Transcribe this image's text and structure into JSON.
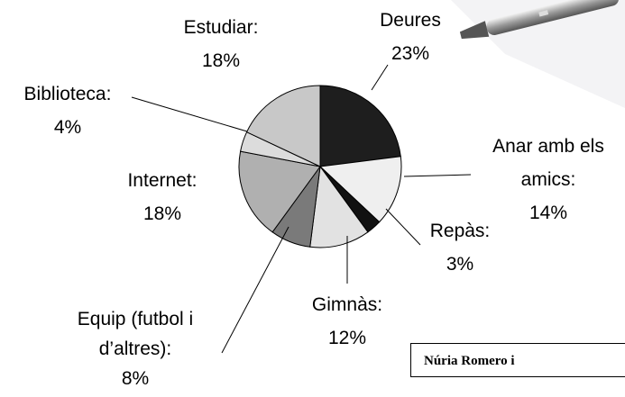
{
  "chart_data": {
    "type": "pie",
    "categories": [
      "Deures",
      "Anar amb els amics:",
      "Repàs:",
      "Gimnàs:",
      "Equip (futbol i d’altres):",
      "Internet:",
      "Biblioteca:",
      "Estudiar:"
    ],
    "values": [
      23,
      14,
      3,
      12,
      8,
      18,
      4,
      18
    ],
    "value_labels": [
      "23%",
      "14%",
      "3%",
      "12%",
      "8%",
      "18%",
      "4%",
      "18%"
    ],
    "colors": [
      "#1e1e1e",
      "#efefef",
      "#111111",
      "#e2e2e2",
      "#7a7a7a",
      "#b0b0b0",
      "#dcdcdc",
      "#c8c8c8"
    ],
    "footer_text": "Núria Romero i"
  }
}
